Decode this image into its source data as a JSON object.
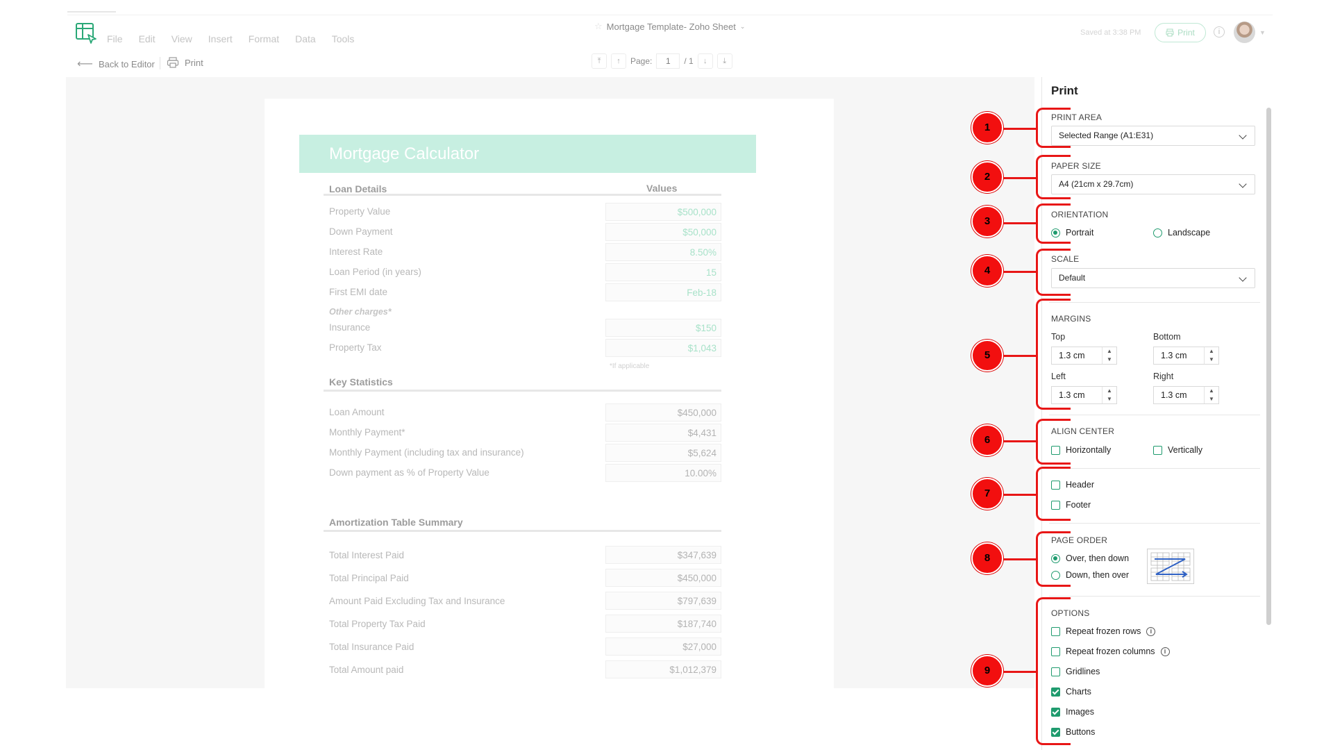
{
  "menu": [
    "File",
    "Edit",
    "View",
    "Insert",
    "Format",
    "Data",
    "Tools"
  ],
  "header": {
    "doc_title": "Mortgage Template- Zoho Sheet",
    "saved_text": "Saved at 3:38 PM",
    "print_button": "Print",
    "info_glyph": "i"
  },
  "toolbar": {
    "back_label": "Back to Editor",
    "print_label": "Print",
    "page_label": "Page:",
    "page_current": "1",
    "page_total": "/ 1"
  },
  "sheet": {
    "title": "Mortgage Calculator",
    "loan_details_header": "Loan Details",
    "values_header": "Values",
    "loan_rows": [
      {
        "label": "Property Value",
        "value": "$500,000"
      },
      {
        "label": "Down Payment",
        "value": "$50,000"
      },
      {
        "label": "Interest Rate",
        "value": "8.50%"
      },
      {
        "label": "Loan Period (in years)",
        "value": "15"
      },
      {
        "label": "First EMI date",
        "value": "Feb-18"
      }
    ],
    "other_charges_label": "Other charges*",
    "charge_rows": [
      {
        "label": "Insurance",
        "value": "$150"
      },
      {
        "label": "Property Tax",
        "value": "$1,043"
      }
    ],
    "if_applicable": "*If applicable",
    "key_stats_header": "Key Statistics",
    "stats_rows": [
      {
        "label": "Loan Amount",
        "value": "$450,000"
      },
      {
        "label": "Monthly Payment*",
        "value": "$4,431"
      },
      {
        "label": "Monthly Payment (including tax and insurance)",
        "value": "$5,624"
      },
      {
        "label": "Down payment as % of Property Value",
        "value": "10.00%"
      }
    ],
    "amort_header": "Amortization Table Summary",
    "amort_rows": [
      {
        "label": "Total Interest Paid",
        "value": "$347,639"
      },
      {
        "label": "Total Principal Paid",
        "value": "$450,000"
      },
      {
        "label": "Amount Paid Excluding Tax and Insurance",
        "value": "$797,639"
      },
      {
        "label": "Total Property Tax Paid",
        "value": "$187,740"
      },
      {
        "label": "Total Insurance Paid",
        "value": "$27,000"
      },
      {
        "label": "Total Amount paid",
        "value": "$1,012,379"
      }
    ]
  },
  "panel": {
    "title": "Print",
    "print_area_label": "PRINT AREA",
    "print_area_value": "Selected Range (A1:E31)",
    "paper_size_label": "PAPER SIZE",
    "paper_size_value": "A4 (21cm x 29.7cm)",
    "orientation_label": "ORIENTATION",
    "orientation_portrait": "Portrait",
    "orientation_landscape": "Landscape",
    "orientation_selected": "Portrait",
    "scale_label": "SCALE",
    "scale_value": "Default",
    "margins_label": "MARGINS",
    "margin_top_label": "Top",
    "margin_top": "1.3 cm",
    "margin_bottom_label": "Bottom",
    "margin_bottom": "1.3 cm",
    "margin_left_label": "Left",
    "margin_left": "1.3 cm",
    "margin_right_label": "Right",
    "margin_right": "1.3 cm",
    "align_center_label": "ALIGN CENTER",
    "align_horizontally": "Horizontally",
    "align_vertically": "Vertically",
    "header_label": "Header",
    "footer_label": "Footer",
    "page_order_label": "PAGE ORDER",
    "page_order_over": "Over, then down",
    "page_order_down": "Down, then over",
    "page_order_selected": "Over, then down",
    "options_label": "OPTIONS",
    "options": [
      {
        "label": "Repeat frozen rows",
        "checked": false,
        "info": true
      },
      {
        "label": "Repeat frozen columns",
        "checked": false,
        "info": true
      },
      {
        "label": "Gridlines",
        "checked": false,
        "info": false
      },
      {
        "label": "Charts",
        "checked": true,
        "info": false
      },
      {
        "label": "Images",
        "checked": true,
        "info": false
      },
      {
        "label": "Buttons",
        "checked": true,
        "info": false
      }
    ]
  },
  "annotations": [
    "1",
    "2",
    "3",
    "4",
    "5",
    "6",
    "7",
    "8",
    "9"
  ],
  "colors": {
    "accent": "#1f9b6e",
    "annotation_red": "#f20f0f",
    "banner_mint": "#c7efe1"
  }
}
